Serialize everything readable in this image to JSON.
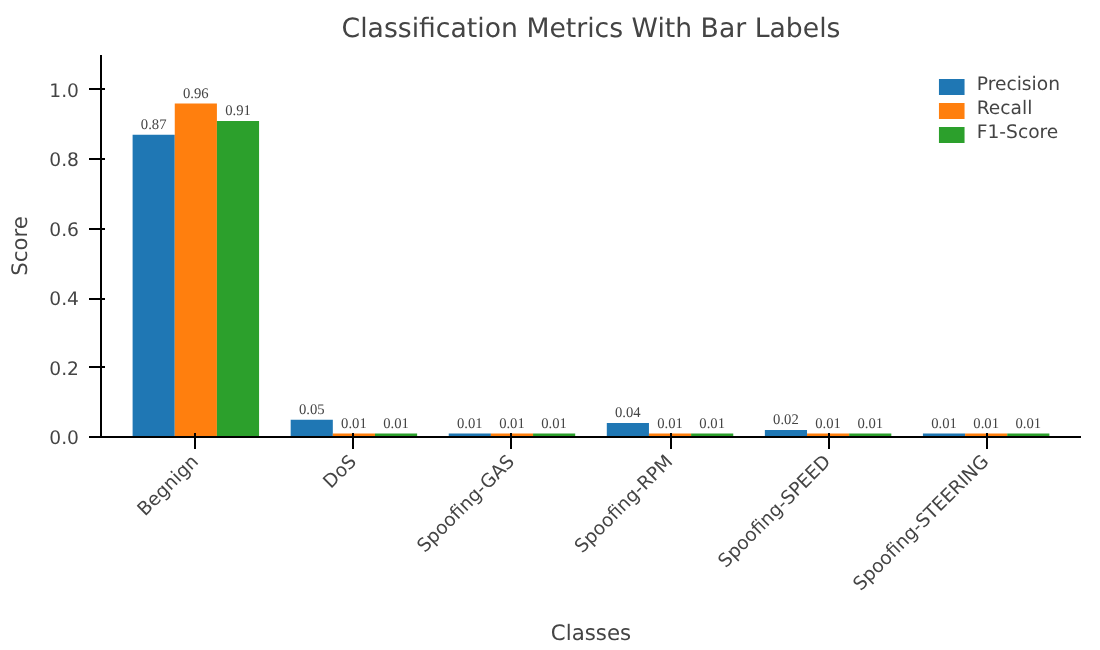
{
  "chart_data": {
    "type": "bar",
    "title": "Classification Metrics With Bar Labels",
    "xlabel": "Classes",
    "ylabel": "Score",
    "categories": [
      "Begnign",
      "DoS",
      "Spoofing-GAS",
      "Spoofing-RPM",
      "Spoofing-SPEED",
      "Spoofing-STEERING"
    ],
    "series": [
      {
        "name": "Precision",
        "color": "#1f77b4",
        "values": [
          0.87,
          0.05,
          0.01,
          0.04,
          0.02,
          0.01
        ]
      },
      {
        "name": "Recall",
        "color": "#ff7f0e",
        "values": [
          0.96,
          0.01,
          0.01,
          0.01,
          0.01,
          0.01
        ]
      },
      {
        "name": "F1-Score",
        "color": "#2ca02c",
        "values": [
          0.91,
          0.01,
          0.01,
          0.01,
          0.01,
          0.01
        ]
      }
    ],
    "ylim": [
      0,
      1.1
    ],
    "yticks": [
      {
        "value": 0,
        "label": "0.0"
      },
      0.2,
      0.4,
      0.6,
      0.8,
      {
        "value": 1,
        "label": "1.0"
      }
    ],
    "data_labels": true,
    "legend": "top right",
    "grid": false
  }
}
